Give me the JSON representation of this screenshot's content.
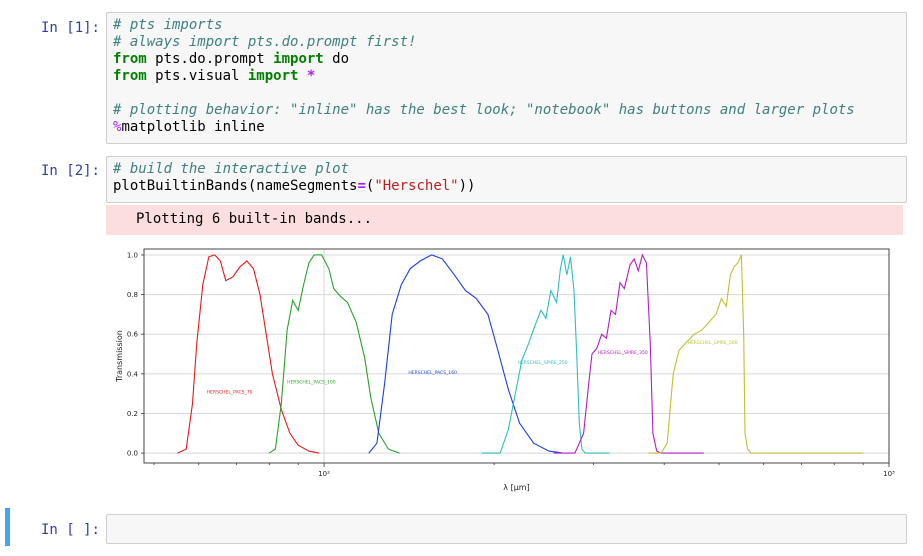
{
  "cells": [
    {
      "prompt": "In [1]:",
      "lines": [
        [
          {
            "t": "cm",
            "v": "# pts imports"
          }
        ],
        [
          {
            "t": "cm",
            "v": "# always import pts.do.prompt first!"
          }
        ],
        [
          {
            "t": "kw",
            "v": "from"
          },
          {
            "t": "",
            "v": " pts.do.prompt "
          },
          {
            "t": "kw",
            "v": "import"
          },
          {
            "t": "",
            "v": " do"
          }
        ],
        [
          {
            "t": "kw",
            "v": "from"
          },
          {
            "t": "",
            "v": " pts.visual "
          },
          {
            "t": "kw",
            "v": "import"
          },
          {
            "t": "",
            "v": " "
          },
          {
            "t": "op",
            "v": "*"
          }
        ],
        [
          {
            "t": "",
            "v": " "
          }
        ],
        [
          {
            "t": "cm",
            "v": "# plotting behavior: \"inline\" has the best look; \"notebook\" has buttons and larger plots"
          }
        ],
        [
          {
            "t": "mg",
            "v": "%"
          },
          {
            "t": "",
            "v": "matplotlib inline"
          }
        ]
      ]
    },
    {
      "prompt": "In [2]:",
      "lines": [
        [
          {
            "t": "cm",
            "v": "# build the interactive plot"
          }
        ],
        [
          {
            "t": "",
            "v": "plotBuiltinBands(nameSegments"
          },
          {
            "t": "op",
            "v": "="
          },
          {
            "t": "",
            "v": "("
          },
          {
            "t": "str",
            "v": "\"Herschel\""
          },
          {
            "t": "",
            "v": "))"
          }
        ]
      ],
      "stream_output": "Plotting 6 built-in bands..."
    },
    {
      "prompt": "In [ ]:",
      "lines": []
    }
  ],
  "chart_data": {
    "type": "line",
    "title": "",
    "xlabel": "λ [μm]",
    "ylabel": "Transmission",
    "xscale": "log",
    "xlim": [
      48,
      1000
    ],
    "ylim": [
      -0.05,
      1.03
    ],
    "grid": true,
    "x_ticks": [
      {
        "value": 100,
        "label": "10²"
      },
      {
        "value": 1000,
        "label": "10³"
      }
    ],
    "y_ticks": [
      "0.0",
      "0.2",
      "0.4",
      "0.6",
      "0.8",
      "1.0"
    ],
    "series": [
      {
        "name": "HERSCHEL_PACS_70",
        "color": "#e41a1c",
        "label_x": 62,
        "label_y": 0.3,
        "points": [
          [
            55,
            0
          ],
          [
            57,
            0.02
          ],
          [
            58.5,
            0.25
          ],
          [
            59.5,
            0.55
          ],
          [
            61,
            0.85
          ],
          [
            62.5,
            0.99
          ],
          [
            64,
            1.0
          ],
          [
            65.5,
            0.97
          ],
          [
            67,
            0.87
          ],
          [
            69,
            0.89
          ],
          [
            71,
            0.94
          ],
          [
            73,
            0.97
          ],
          [
            75,
            0.93
          ],
          [
            77,
            0.8
          ],
          [
            79,
            0.6
          ],
          [
            81,
            0.4
          ],
          [
            84,
            0.22
          ],
          [
            87,
            0.1
          ],
          [
            90,
            0.04
          ],
          [
            94,
            0.01
          ],
          [
            98,
            0
          ]
        ]
      },
      {
        "name": "HERSCHEL_PACS_100",
        "color": "#2ca02c",
        "label_x": 86,
        "label_y": 0.35,
        "points": [
          [
            80,
            0
          ],
          [
            82,
            0.02
          ],
          [
            84,
            0.25
          ],
          [
            86,
            0.62
          ],
          [
            88,
            0.77
          ],
          [
            90,
            0.72
          ],
          [
            92,
            0.85
          ],
          [
            94,
            0.96
          ],
          [
            96,
            1.0
          ],
          [
            99,
            1.0
          ],
          [
            102,
            0.93
          ],
          [
            104,
            0.83
          ],
          [
            107,
            0.79
          ],
          [
            110,
            0.76
          ],
          [
            114,
            0.66
          ],
          [
            118,
            0.48
          ],
          [
            121,
            0.28
          ],
          [
            125,
            0.1
          ],
          [
            130,
            0.02
          ],
          [
            136,
            0
          ]
        ]
      },
      {
        "name": "HERSCHEL_PACS_160",
        "color": "#1f3fd8",
        "label_x": 141,
        "label_y": 0.4,
        "points": [
          [
            120,
            0
          ],
          [
            124,
            0.05
          ],
          [
            128,
            0.35
          ],
          [
            132,
            0.7
          ],
          [
            137,
            0.85
          ],
          [
            142,
            0.93
          ],
          [
            148,
            0.97
          ],
          [
            155,
            1.0
          ],
          [
            162,
            0.98
          ],
          [
            170,
            0.9
          ],
          [
            178,
            0.82
          ],
          [
            186,
            0.78
          ],
          [
            195,
            0.7
          ],
          [
            203,
            0.52
          ],
          [
            212,
            0.32
          ],
          [
            222,
            0.15
          ],
          [
            235,
            0.05
          ],
          [
            250,
            0.01
          ],
          [
            265,
            0
          ]
        ]
      },
      {
        "name": "HERSCHEL_SPIRE_250",
        "color": "#2fbfbf",
        "label_x": 220,
        "label_y": 0.45,
        "points": [
          [
            190,
            0
          ],
          [
            205,
            0
          ],
          [
            212,
            0.12
          ],
          [
            218,
            0.3
          ],
          [
            224,
            0.47
          ],
          [
            230,
            0.55
          ],
          [
            236,
            0.64
          ],
          [
            242,
            0.72
          ],
          [
            247,
            0.68
          ],
          [
            252,
            0.82
          ],
          [
            258,
            0.76
          ],
          [
            262,
            0.93
          ],
          [
            265,
            1.0
          ],
          [
            269,
            0.9
          ],
          [
            273,
            0.99
          ],
          [
            277,
            0.82
          ],
          [
            280,
            0.5
          ],
          [
            283,
            0.15
          ],
          [
            286,
            0.02
          ],
          [
            290,
            0
          ],
          [
            320,
            0
          ]
        ]
      },
      {
        "name": "HERSCHEL_SPIRE_350",
        "color": "#b020c0",
        "label_x": 305,
        "label_y": 0.5,
        "points": [
          [
            255,
            0
          ],
          [
            278,
            0
          ],
          [
            288,
            0.1
          ],
          [
            294,
            0.35
          ],
          [
            298,
            0.5
          ],
          [
            304,
            0.53
          ],
          [
            310,
            0.6
          ],
          [
            316,
            0.58
          ],
          [
            322,
            0.72
          ],
          [
            328,
            0.7
          ],
          [
            334,
            0.86
          ],
          [
            340,
            0.83
          ],
          [
            348,
            0.95
          ],
          [
            354,
            0.98
          ],
          [
            360,
            0.92
          ],
          [
            366,
            1.0
          ],
          [
            372,
            0.96
          ],
          [
            378,
            0.55
          ],
          [
            382,
            0.1
          ],
          [
            388,
            0.01
          ],
          [
            395,
            0
          ],
          [
            470,
            0
          ]
        ]
      },
      {
        "name": "HERSCHEL_SPIRE_500",
        "color": "#c0c030",
        "label_x": 440,
        "label_y": 0.55,
        "points": [
          [
            375,
            0
          ],
          [
            395,
            0
          ],
          [
            405,
            0.05
          ],
          [
            415,
            0.4
          ],
          [
            425,
            0.52
          ],
          [
            438,
            0.56
          ],
          [
            452,
            0.6
          ],
          [
            466,
            0.62
          ],
          [
            480,
            0.66
          ],
          [
            494,
            0.7
          ],
          [
            505,
            0.78
          ],
          [
            515,
            0.74
          ],
          [
            524,
            0.9
          ],
          [
            532,
            0.94
          ],
          [
            540,
            0.96
          ],
          [
            548,
            1.0
          ],
          [
            553,
            0.6
          ],
          [
            556,
            0.1
          ],
          [
            562,
            0.02
          ],
          [
            570,
            0
          ],
          [
            900,
            0
          ]
        ]
      }
    ]
  }
}
